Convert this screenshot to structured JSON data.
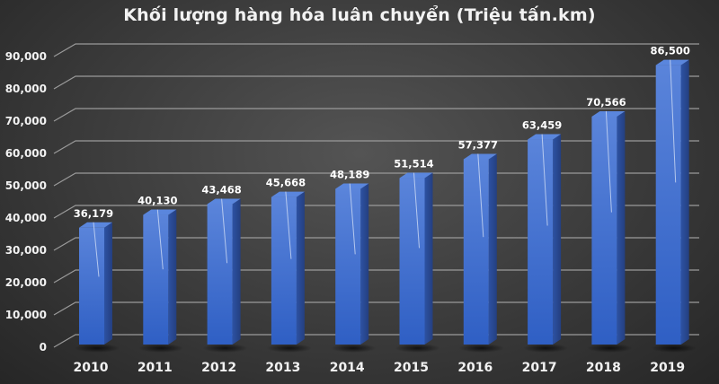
{
  "chart_data": {
    "type": "bar",
    "style": "3d-column",
    "title": "Khối lượng hàng hóa luân chuyển (Triệu tấn.km)",
    "xlabel": "",
    "ylabel": "",
    "categories": [
      "2010",
      "2011",
      "2012",
      "2013",
      "2014",
      "2015",
      "2016",
      "2017",
      "2018",
      "2019"
    ],
    "values": [
      36179,
      40130,
      43468,
      45668,
      48189,
      51514,
      57377,
      63459,
      70566,
      86500
    ],
    "data_labels": [
      "36,179",
      "40,130",
      "43,468",
      "45,668",
      "48,189",
      "51,514",
      "57,377",
      "63,459",
      "70,566",
      "86,500"
    ],
    "ylim": [
      0,
      90000
    ],
    "y_ticks": [
      0,
      10000,
      20000,
      30000,
      40000,
      50000,
      60000,
      70000,
      80000,
      90000
    ],
    "y_tick_labels": [
      "0",
      "10,000",
      "20,000",
      "30,000",
      "40,000",
      "50,000",
      "60,000",
      "70,000",
      "80,000",
      "90,000"
    ],
    "grid": true,
    "legend": "none",
    "colors": {
      "bar_front": "#3f6fd0",
      "bar_side": "#2b4f9e",
      "bar_top": "#5a86dd",
      "grid": "#9a9a9a",
      "text": "#f2f2f2"
    }
  }
}
